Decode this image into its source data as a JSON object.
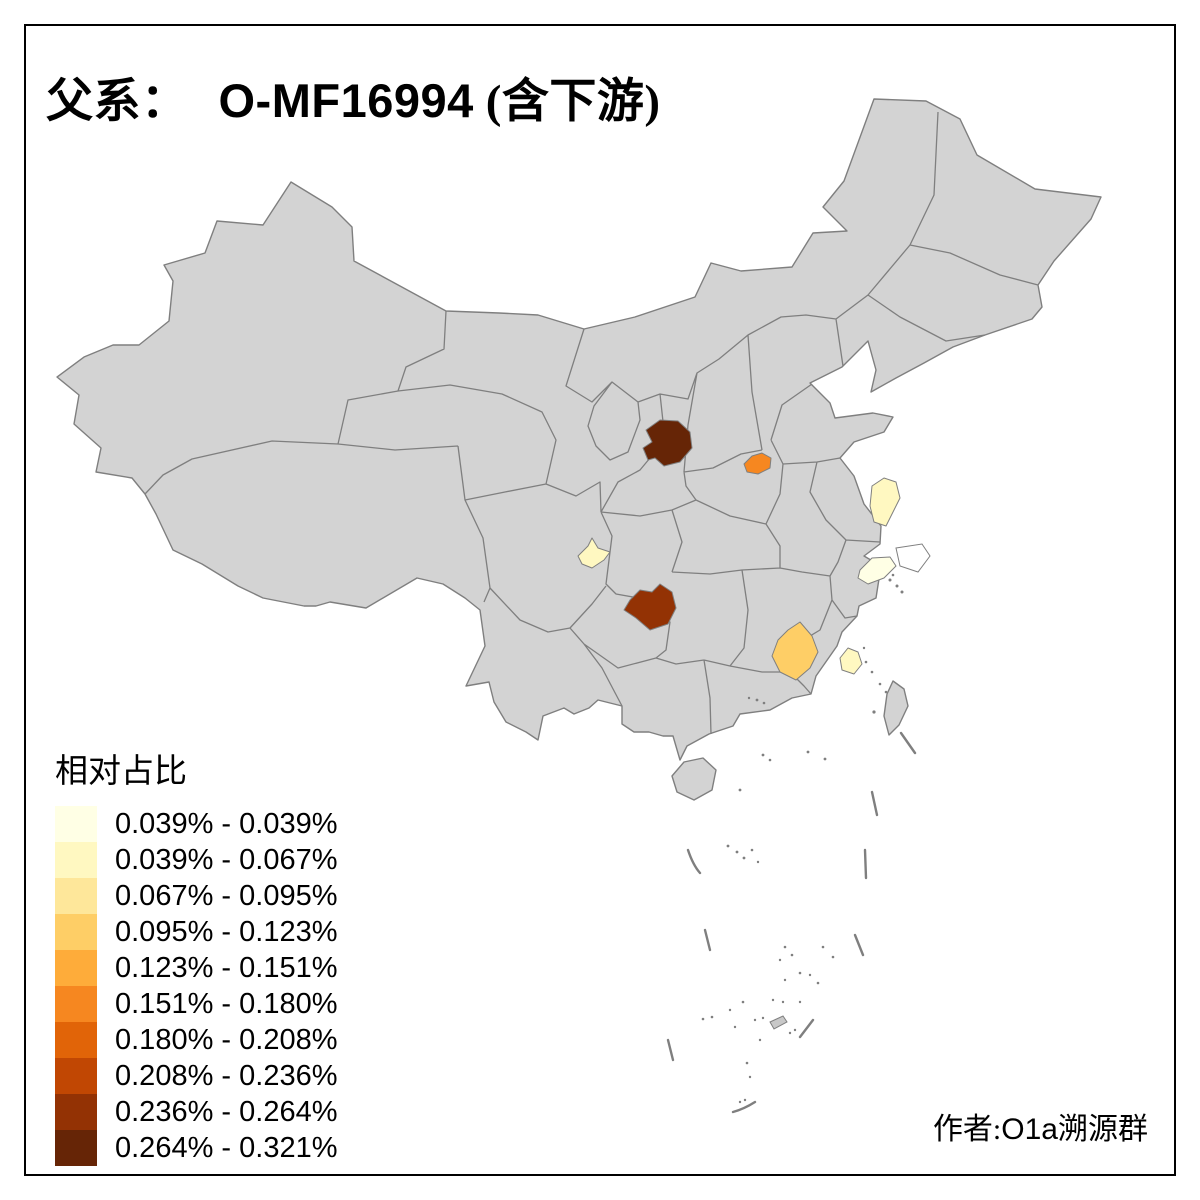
{
  "title": {
    "prefix": "父系：",
    "haplogroup": "O-MF16994",
    "suffix": "(含下游)"
  },
  "legend": {
    "title": "相对占比",
    "classes": [
      {
        "label": "0.039% - 0.039%",
        "color": "#FFFFE5"
      },
      {
        "label": "0.039% - 0.067%",
        "color": "#FFF8C1"
      },
      {
        "label": "0.067% - 0.095%",
        "color": "#FEE79A"
      },
      {
        "label": "0.095% - 0.123%",
        "color": "#FECE66"
      },
      {
        "label": "0.123% - 0.151%",
        "color": "#FEAC3A"
      },
      {
        "label": "0.151% - 0.180%",
        "color": "#F68720"
      },
      {
        "label": "0.180% - 0.208%",
        "color": "#E16408"
      },
      {
        "label": "0.208% - 0.236%",
        "color": "#C14703"
      },
      {
        "label": "0.236% - 0.264%",
        "color": "#933204"
      },
      {
        "label": "0.264% - 0.321%",
        "color": "#662506"
      }
    ]
  },
  "attribution": {
    "prefix": "作者:",
    "latin": "O1a",
    "suffix": "溯源群"
  },
  "map": {
    "land_fill": "#D3D3D3",
    "boundary_color": "#7F7F7F",
    "sea_fill": "#FFFFFF",
    "frame_color": "#000000",
    "highlighted_regions": [
      {
        "id": "gansu-ningxia-east-area",
        "class_index": 9,
        "value_range": "0.264% - 0.321%"
      },
      {
        "id": "north-henan-area",
        "class_index": 5,
        "value_range": "0.151% - 0.180%"
      },
      {
        "id": "central-jiangsu-area",
        "class_index": 1,
        "value_range": "0.039% - 0.067%"
      },
      {
        "id": "north-zhejiang-area",
        "class_index": 0,
        "value_range": "0.039% - 0.039%"
      },
      {
        "id": "chengdu-sichuan-area",
        "class_index": 1,
        "value_range": "0.039% - 0.067%"
      },
      {
        "id": "north-guizhou-area",
        "class_index": 8,
        "value_range": "0.236% - 0.264%"
      },
      {
        "id": "south-hunan-area",
        "class_index": 3,
        "value_range": "0.095% - 0.123%"
      },
      {
        "id": "coastal-fujian-area",
        "class_index": 1,
        "value_range": "0.039% - 0.067%"
      }
    ]
  }
}
